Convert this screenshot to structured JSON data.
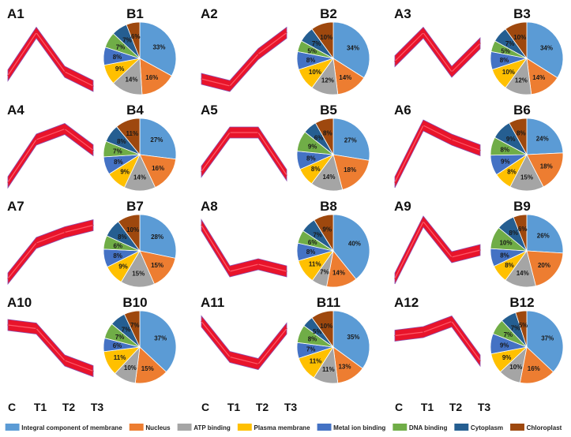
{
  "categories": [
    "Integral component of membrane",
    "Nucleus",
    "ATP binding",
    "Plasma membrane",
    "Metal ion binding",
    "DNA binding",
    "Cytoplasm",
    "Chloroplast"
  ],
  "colors": [
    "#5b9bd5",
    "#ed7d31",
    "#a5a5a5",
    "#ffc000",
    "#4472c4",
    "#70ad47",
    "#255e91",
    "#9e480e"
  ],
  "x_labels": [
    "C",
    "T1",
    "T2",
    "T3"
  ],
  "chart_data": [
    {
      "type": "line",
      "label": "A1",
      "ylabel": "",
      "xlabel": "",
      "profile": [
        0.25,
        0.85,
        0.3,
        0.1
      ]
    },
    {
      "type": "pie",
      "label": "B1",
      "values": [
        33,
        16,
        14,
        9,
        8,
        7,
        7,
        6
      ]
    },
    {
      "type": "line",
      "label": "A2",
      "ylabel": "",
      "xlabel": "",
      "profile": [
        0.2,
        0.1,
        0.55,
        0.85
      ]
    },
    {
      "type": "pie",
      "label": "B2",
      "values": [
        34,
        14,
        12,
        10,
        8,
        5,
        7,
        10
      ]
    },
    {
      "type": "line",
      "label": "A3",
      "ylabel": "",
      "xlabel": "",
      "profile": [
        0.45,
        0.85,
        0.3,
        0.7
      ]
    },
    {
      "type": "pie",
      "label": "B3",
      "values": [
        34,
        14,
        12,
        10,
        8,
        5,
        7,
        10
      ]
    },
    {
      "type": "line",
      "label": "A4",
      "ylabel": "",
      "xlabel": "",
      "profile": [
        0.1,
        0.7,
        0.85,
        0.55
      ]
    },
    {
      "type": "pie",
      "label": "B4",
      "values": [
        27,
        16,
        14,
        9,
        8,
        7,
        8,
        11
      ]
    },
    {
      "type": "line",
      "label": "A5",
      "ylabel": "",
      "xlabel": "",
      "profile": [
        0.25,
        0.8,
        0.8,
        0.2
      ]
    },
    {
      "type": "pie",
      "label": "B5",
      "values": [
        27,
        18,
        14,
        8,
        8,
        9,
        6,
        8
      ]
    },
    {
      "type": "line",
      "label": "A6",
      "ylabel": "",
      "xlabel": "",
      "profile": [
        0.1,
        0.9,
        0.7,
        0.55
      ]
    },
    {
      "type": "pie",
      "label": "B6",
      "values": [
        24,
        18,
        15,
        8,
        9,
        8,
        9,
        8
      ]
    },
    {
      "type": "line",
      "label": "A7",
      "ylabel": "",
      "xlabel": "",
      "profile": [
        0.1,
        0.6,
        0.75,
        0.85
      ]
    },
    {
      "type": "pie",
      "label": "B7",
      "values": [
        28,
        15,
        15,
        9,
        8,
        6,
        8,
        10
      ]
    },
    {
      "type": "line",
      "label": "A8",
      "ylabel": "",
      "xlabel": "",
      "profile": [
        0.85,
        0.2,
        0.3,
        0.2
      ]
    },
    {
      "type": "pie",
      "label": "B8",
      "values": [
        40,
        14,
        7,
        11,
        8,
        6,
        7,
        9
      ]
    },
    {
      "type": "line",
      "label": "A9",
      "ylabel": "",
      "xlabel": "",
      "profile": [
        0.1,
        0.9,
        0.4,
        0.5
      ]
    },
    {
      "type": "pie",
      "label": "B9",
      "values": [
        26,
        20,
        14,
        8,
        8,
        10,
        8,
        6
      ]
    },
    {
      "type": "line",
      "label": "A10",
      "ylabel": "",
      "xlabel": "",
      "profile": [
        0.8,
        0.75,
        0.3,
        0.15
      ]
    },
    {
      "type": "pie",
      "label": "B10",
      "values": [
        37,
        15,
        10,
        11,
        6,
        7,
        7,
        7
      ]
    },
    {
      "type": "line",
      "label": "A11",
      "ylabel": "",
      "xlabel": "",
      "profile": [
        0.85,
        0.35,
        0.25,
        0.75
      ]
    },
    {
      "type": "pie",
      "label": "B11",
      "values": [
        35,
        13,
        11,
        11,
        7,
        8,
        5,
        10
      ]
    },
    {
      "type": "line",
      "label": "A12",
      "ylabel": "",
      "xlabel": "",
      "profile": [
        0.65,
        0.7,
        0.85,
        0.3
      ]
    },
    {
      "type": "pie",
      "label": "B12",
      "values": [
        37,
        16,
        10,
        9,
        9,
        7,
        7,
        5
      ]
    }
  ]
}
